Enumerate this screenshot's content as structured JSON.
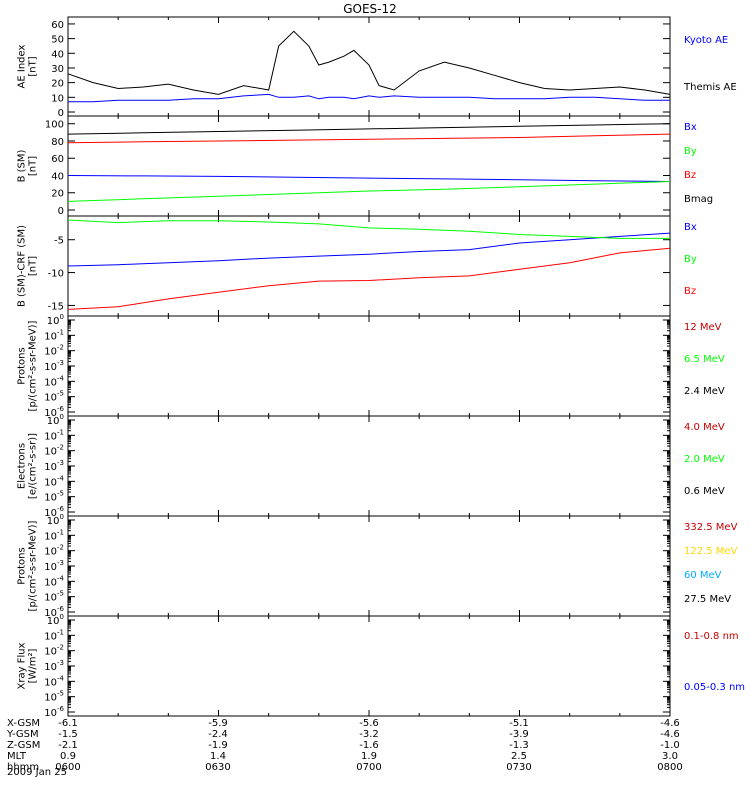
{
  "title": "GOES-12",
  "date_label": "2009 Jan 25",
  "colors": {
    "black": "#000000",
    "blue": "#0000ff",
    "red": "#ff0000",
    "green": "#00ff00",
    "darkred": "#c80000",
    "yellow": "#ffd700",
    "cyan": "#00aaff"
  },
  "x_axis": {
    "range": [
      "06:00",
      "08:00"
    ],
    "rows": [
      {
        "label": "X-GSM",
        "values": [
          "-6.1",
          "-5.9",
          "-5.6",
          "-5.1",
          "-4.6"
        ]
      },
      {
        "label": "Y-GSM",
        "values": [
          "-1.5",
          "-2.4",
          "-3.2",
          "-3.9",
          "-4.6"
        ]
      },
      {
        "label": "Z-GSM",
        "values": [
          "-2.1",
          "-1.9",
          "-1.6",
          "-1.3",
          "-1.0"
        ]
      },
      {
        "label": "MLT",
        "values": [
          "0.9",
          "1.4",
          "1.9",
          "2.5",
          "3.0"
        ]
      },
      {
        "label": "hhmm",
        "values": [
          "0600",
          "0630",
          "0700",
          "0730",
          "0800"
        ]
      }
    ]
  },
  "chart_data": [
    {
      "type": "line",
      "ylabel": "AE Index [nT]",
      "ylim": [
        0,
        62
      ],
      "yticks": [
        0,
        10,
        20,
        30,
        40,
        50,
        60
      ],
      "x": [
        0,
        5,
        10,
        15,
        20,
        25,
        30,
        35,
        40,
        42,
        45,
        48,
        50,
        52,
        55,
        57,
        60,
        62,
        65,
        70,
        75,
        80,
        85,
        90,
        95,
        100,
        105,
        110,
        115,
        120
      ],
      "series": [
        {
          "name": "Kyoto AE",
          "color": "blue",
          "values": [
            7,
            7,
            8,
            8,
            8,
            9,
            9,
            11,
            12,
            10,
            10,
            11,
            9,
            10,
            10,
            9,
            11,
            10,
            11,
            10,
            10,
            10,
            9,
            9,
            9,
            10,
            10,
            9,
            8,
            8
          ]
        },
        {
          "name": "Themis AE",
          "color": "black",
          "values": [
            26,
            20,
            16,
            17,
            19,
            15,
            12,
            18,
            15,
            45,
            55,
            45,
            32,
            34,
            38,
            42,
            32,
            18,
            15,
            28,
            34,
            30,
            25,
            20,
            16,
            15,
            16,
            17,
            15,
            12
          ]
        }
      ]
    },
    {
      "type": "line",
      "ylabel": "B (SM) [nT]",
      "ylim": [
        0,
        102
      ],
      "yticks": [
        0,
        20,
        40,
        60,
        80,
        100
      ],
      "x": [
        0,
        15,
        30,
        45,
        60,
        75,
        90,
        105,
        120
      ],
      "series": [
        {
          "name": "Bx",
          "color": "blue",
          "values": [
            40,
            39.5,
            39,
            38,
            37,
            36,
            35,
            34,
            33
          ]
        },
        {
          "name": "By",
          "color": "green",
          "values": [
            10,
            13,
            16,
            19,
            22,
            24,
            27,
            30,
            33
          ]
        },
        {
          "name": "Bz",
          "color": "red",
          "values": [
            78,
            79,
            80,
            81,
            82,
            83,
            84,
            86,
            88
          ]
        },
        {
          "name": "Bmag",
          "color": "black",
          "values": [
            88,
            89.5,
            91,
            92.5,
            94,
            95.5,
            97,
            98.5,
            100
          ]
        }
      ]
    },
    {
      "type": "line",
      "ylabel": "B (SM)-CRF (SM) [nT]",
      "ylim": [
        -16,
        -2
      ],
      "yticks": [
        -15,
        -10,
        -5
      ],
      "x": [
        0,
        10,
        20,
        30,
        40,
        50,
        60,
        70,
        80,
        90,
        100,
        110,
        120
      ],
      "series": [
        {
          "name": "Bx",
          "color": "blue",
          "values": [
            -9,
            -8.8,
            -8.5,
            -8.2,
            -7.8,
            -7.5,
            -7.2,
            -6.8,
            -6.5,
            -5.5,
            -5,
            -4.5,
            -4
          ]
        },
        {
          "name": "By",
          "color": "green",
          "values": [
            -2,
            -2.4,
            -2.1,
            -2.1,
            -2.3,
            -2.6,
            -3.2,
            -3.4,
            -3.7,
            -4.2,
            -4.5,
            -4.8,
            -4.8
          ]
        },
        {
          "name": "Bz",
          "color": "red",
          "values": [
            -15.6,
            -15.2,
            -14,
            -13,
            -12,
            -11.3,
            -11.2,
            -10.8,
            -10.5,
            -9.5,
            -8.5,
            -7,
            -6.3
          ]
        }
      ]
    },
    {
      "type": "line",
      "ylabel": "Protons [p/(cm²-s-sr-MeV)]",
      "yscale": "log",
      "ylim": [
        1e-06,
        1
      ],
      "ytick_exponents": [
        -6,
        -5,
        -4,
        -3,
        -2,
        -1,
        0
      ],
      "series": [
        {
          "name": "12 MeV",
          "color": "darkred",
          "values": []
        },
        {
          "name": "6.5 MeV",
          "color": "green",
          "values": []
        },
        {
          "name": "2.4 MeV",
          "color": "black",
          "values": []
        }
      ]
    },
    {
      "type": "line",
      "ylabel": "Electrons [e/(cm²-s-sr)]",
      "yscale": "log",
      "ylim": [
        1e-06,
        1
      ],
      "ytick_exponents": [
        -6,
        -5,
        -4,
        -3,
        -2,
        -1,
        0
      ],
      "series": [
        {
          "name": "4.0 MeV",
          "color": "darkred",
          "values": []
        },
        {
          "name": "2.0 MeV",
          "color": "green",
          "values": []
        },
        {
          "name": "0.6 MeV",
          "color": "black",
          "values": []
        }
      ]
    },
    {
      "type": "line",
      "ylabel": "Protons [p/(cm²-s-sr-MeV)]",
      "yscale": "log",
      "ylim": [
        1e-06,
        1
      ],
      "ytick_exponents": [
        -6,
        -5,
        -4,
        -3,
        -2,
        -1,
        0
      ],
      "series": [
        {
          "name": "332.5 MeV",
          "color": "darkred",
          "values": []
        },
        {
          "name": "122.5 MeV",
          "color": "yellow",
          "values": []
        },
        {
          "name": "60 MeV",
          "color": "cyan",
          "values": []
        },
        {
          "name": "27.5 MeV",
          "color": "black",
          "values": []
        }
      ]
    },
    {
      "type": "line",
      "ylabel": "Xray Flux [W/m²]",
      "yscale": "log",
      "ylim": [
        1e-06,
        1
      ],
      "ytick_exponents": [
        -6,
        -5,
        -4,
        -3,
        -2,
        -1,
        0
      ],
      "series": [
        {
          "name": "0.1-0.8 nm",
          "color": "darkred",
          "values": []
        },
        {
          "name": "0.05-0.3 nm",
          "color": "blue",
          "values": []
        }
      ]
    }
  ]
}
